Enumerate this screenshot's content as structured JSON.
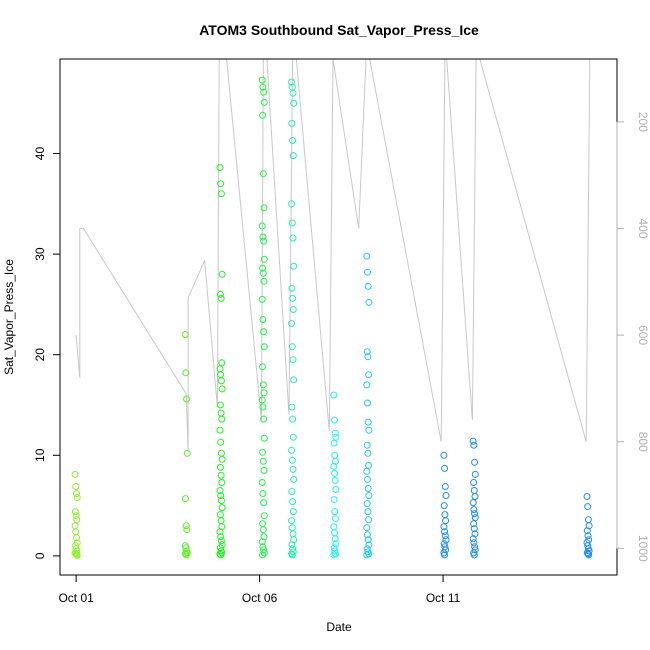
{
  "chart_data": {
    "type": "scatter",
    "title": "ATOM3 Southbound Sat_Vapor_Press_Ice",
    "xlabel": "Date",
    "ylabel": "Sat_Vapor_Press_Ice",
    "x_ticks": [
      "Oct 01",
      "Oct 06",
      "Oct 11"
    ],
    "x_tick_days": [
      1,
      6,
      11
    ],
    "xlim": [
      0.56,
      15.74
    ],
    "ylim": [
      -1.9,
      49.4
    ],
    "y_ticks": [
      0,
      10,
      20,
      30,
      40
    ],
    "y2_ticks": [
      200,
      400,
      600,
      800,
      1000
    ],
    "y2lim": [
      82,
      1050
    ],
    "y2_reversed": true,
    "grid": false,
    "legend": "none",
    "point_colors": [
      "#8cf22a",
      "#5af21e",
      "#22f222",
      "#22f248",
      "#22f2a8",
      "#22f2f2",
      "#22c8f2",
      "#1e8cf2"
    ],
    "line_color": "#c8c8c8",
    "clusters": [
      {
        "x": 1.0,
        "values": [
          8.1,
          6.9,
          6.2,
          5.8,
          4.4,
          4.0,
          3.6,
          3.0,
          2.4,
          1.8,
          1.3,
          1.0,
          0.7,
          0.5,
          0.3,
          0.2,
          0.1,
          0.05
        ]
      },
      {
        "x": 4.0,
        "values": [
          22.0,
          18.2,
          15.6,
          10.2,
          5.7,
          3.0,
          2.6,
          1.0,
          0.8,
          0.5,
          0.3,
          0.2,
          0.1
        ]
      },
      {
        "x": 4.95,
        "values": [
          38.6,
          37.0,
          36.0,
          28.0,
          26.0,
          25.6,
          19.2,
          18.6,
          18.0,
          17.4,
          16.6,
          15.0,
          14.2,
          13.6,
          12.5,
          11.3,
          10.2,
          9.6,
          8.8,
          8.0,
          7.3,
          6.5,
          6.0,
          5.5,
          4.8,
          4.1,
          3.5,
          2.9,
          2.4,
          1.9,
          1.5,
          1.1,
          0.8,
          0.5,
          0.3,
          0.2,
          0.1
        ]
      },
      {
        "x": 6.1,
        "values": [
          47.3,
          46.6,
          46.1,
          45.1,
          43.8,
          38.0,
          34.6,
          32.8,
          31.7,
          31.3,
          29.5,
          28.6,
          28.1,
          27.3,
          25.5,
          23.5,
          22.3,
          20.8,
          18.8,
          17.0,
          16.2,
          15.5,
          14.8,
          13.6,
          11.7,
          10.3,
          9.4,
          8.5,
          7.3,
          6.2,
          5.3,
          4.0,
          3.2,
          2.6,
          1.9,
          1.4,
          0.9,
          0.6,
          0.3,
          0.1
        ]
      },
      {
        "x": 6.9,
        "values": [
          47.1,
          46.6,
          46.0,
          45.0,
          43.0,
          41.3,
          39.8,
          35.0,
          33.1,
          31.6,
          28.8,
          26.6,
          25.6,
          24.5,
          23.1,
          20.8,
          19.5,
          17.5,
          14.8,
          13.6,
          11.8,
          10.5,
          9.5,
          8.6,
          7.6,
          6.4,
          5.4,
          4.4,
          3.5,
          2.8,
          2.2,
          1.6,
          1.1,
          0.7,
          0.4,
          0.2,
          0.1
        ]
      },
      {
        "x": 8.05,
        "values": [
          16.0,
          13.5,
          12.2,
          11.8,
          11.2,
          10.0,
          9.4,
          8.9,
          8.2,
          7.5,
          6.6,
          5.6,
          4.4,
          3.7,
          2.9,
          2.3,
          1.7,
          1.2,
          0.8,
          0.5,
          0.2,
          0.1
        ]
      },
      {
        "x": 8.95,
        "values": [
          29.8,
          28.2,
          26.8,
          25.2,
          20.3,
          19.8,
          18.0,
          17.0,
          15.2,
          13.3,
          12.5,
          11.0,
          10.2,
          9.0,
          8.4,
          7.6,
          6.7,
          6.0,
          5.2,
          4.4,
          3.6,
          2.8,
          2.1,
          1.6,
          1.1,
          0.7,
          0.4,
          0.2,
          0.1
        ]
      },
      {
        "x": 11.05,
        "values": [
          10.0,
          8.7,
          6.9,
          6.0,
          5.0,
          4.1,
          3.5,
          2.9,
          2.4,
          2.0,
          1.6,
          1.2,
          0.9,
          0.6,
          0.3,
          0.1
        ]
      },
      {
        "x": 11.85,
        "values": [
          11.4,
          11.0,
          9.3,
          8.1,
          7.3,
          6.5,
          5.9,
          5.3,
          4.6,
          4.2,
          3.8,
          3.2,
          2.7,
          2.2,
          1.7,
          1.3,
          0.9,
          0.6,
          0.3,
          0.1
        ]
      },
      {
        "x": 14.95,
        "values": [
          5.9,
          4.9,
          3.6,
          3.0,
          2.5,
          2.0,
          1.6,
          1.3,
          1.0,
          0.7,
          0.5,
          0.3,
          0.2,
          0.1
        ]
      }
    ],
    "pressure_track": [
      [
        1.0,
        600
      ],
      [
        1.1,
        680
      ],
      [
        1.1,
        400
      ],
      [
        1.2,
        400
      ],
      [
        4.0,
        710
      ],
      [
        4.05,
        820
      ],
      [
        4.05,
        530
      ],
      [
        4.5,
        460
      ],
      [
        4.85,
        735
      ],
      [
        4.9,
        82
      ],
      [
        5.0,
        82
      ],
      [
        5.1,
        82
      ],
      [
        6.05,
        760
      ],
      [
        6.1,
        82
      ],
      [
        6.2,
        82
      ],
      [
        6.8,
        750
      ],
      [
        6.9,
        82
      ],
      [
        7.0,
        82
      ],
      [
        7.9,
        780
      ],
      [
        8.0,
        82
      ],
      [
        8.7,
        400
      ],
      [
        8.9,
        82
      ],
      [
        9.0,
        82
      ],
      [
        10.95,
        800
      ],
      [
        11.05,
        82
      ],
      [
        11.1,
        82
      ],
      [
        11.8,
        760
      ],
      [
        11.9,
        82
      ],
      [
        12.0,
        82
      ],
      [
        14.9,
        800
      ],
      [
        15.0,
        82
      ],
      [
        15.1,
        82
      ]
    ]
  }
}
